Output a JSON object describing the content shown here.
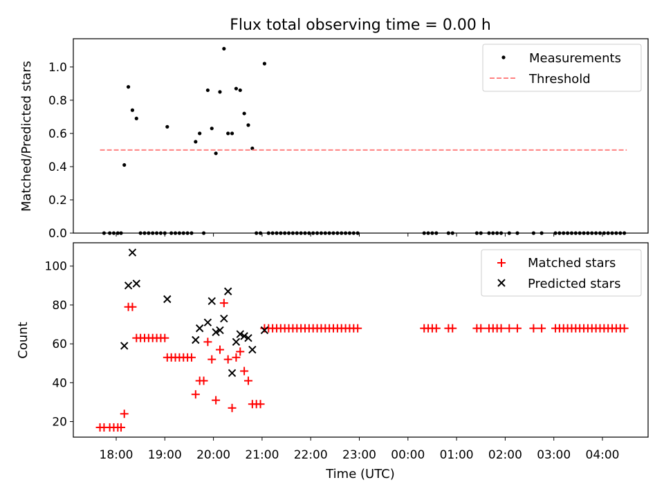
{
  "title": "Flux total observing time = 0.00 h",
  "xlabel": "Time (UTC)",
  "x_tick_labels": [
    "18:00",
    "19:00",
    "20:00",
    "21:00",
    "22:00",
    "23:00",
    "00:00",
    "01:00",
    "02:00",
    "03:00",
    "04:00"
  ],
  "colors": {
    "measurements": "#000000",
    "threshold": "#ff8080",
    "matched": "#ff0000",
    "predicted": "#000000"
  },
  "chart_data": [
    {
      "type": "scatter",
      "title": "Flux total observing time = 0.00 h",
      "xlabel": "",
      "ylabel": "Matched/Predicted stars",
      "ylim": [
        0,
        1.17
      ],
      "yticks": [
        0.0,
        0.2,
        0.4,
        0.6,
        0.8,
        1.0
      ],
      "ytick_labels": [
        "0.0",
        "0.2",
        "0.4",
        "0.6",
        "0.8",
        "1.0"
      ],
      "legend": "top-right",
      "series": [
        {
          "name": "Measurements",
          "marker": "dot",
          "points": [
            [
              "17:45",
              0
            ],
            [
              "17:52",
              0
            ],
            [
              "17:57",
              0
            ],
            [
              "18:02",
              0
            ],
            [
              "18:06",
              0
            ],
            [
              "18:10",
              0.41
            ],
            [
              "18:15",
              0.88
            ],
            [
              "18:20",
              0.74
            ],
            [
              "18:25",
              0.69
            ],
            [
              "18:30",
              0
            ],
            [
              "18:35",
              0
            ],
            [
              "18:40",
              0
            ],
            [
              "18:45",
              0
            ],
            [
              "18:50",
              0
            ],
            [
              "18:55",
              0
            ],
            [
              "19:00",
              0
            ],
            [
              "19:03",
              0.64
            ],
            [
              "19:08",
              0
            ],
            [
              "19:13",
              0
            ],
            [
              "19:18",
              0
            ],
            [
              "19:23",
              0
            ],
            [
              "19:28",
              0
            ],
            [
              "19:33",
              0
            ],
            [
              "19:38",
              0.55
            ],
            [
              "19:43",
              0.6
            ],
            [
              "19:48",
              0
            ],
            [
              "19:53",
              0.86
            ],
            [
              "19:58",
              0.63
            ],
            [
              "20:03",
              0.48
            ],
            [
              "20:08",
              0.85
            ],
            [
              "20:13",
              1.11
            ],
            [
              "20:18",
              0.6
            ],
            [
              "20:23",
              0.6
            ],
            [
              "20:28",
              0.87
            ],
            [
              "20:33",
              0.86
            ],
            [
              "20:38",
              0.72
            ],
            [
              "20:43",
              0.65
            ],
            [
              "20:48",
              0.51
            ],
            [
              "20:53",
              0
            ],
            [
              "20:58",
              0
            ],
            [
              "21:03",
              1.02
            ],
            [
              "21:08",
              0
            ],
            [
              "21:13",
              0
            ],
            [
              "21:18",
              0
            ],
            [
              "21:23",
              0
            ],
            [
              "21:28",
              0
            ],
            [
              "21:33",
              0
            ],
            [
              "21:38",
              0
            ],
            [
              "21:43",
              0
            ],
            [
              "21:48",
              0
            ],
            [
              "21:53",
              0
            ],
            [
              "21:58",
              0
            ],
            [
              "22:03",
              0
            ],
            [
              "22:08",
              0
            ],
            [
              "22:13",
              0
            ],
            [
              "22:18",
              0
            ],
            [
              "22:23",
              0
            ],
            [
              "22:28",
              0
            ],
            [
              "22:33",
              0
            ],
            [
              "22:38",
              0
            ],
            [
              "22:43",
              0
            ],
            [
              "22:48",
              0
            ],
            [
              "22:53",
              0
            ],
            [
              "22:58",
              0
            ],
            [
              "00:20",
              0
            ],
            [
              "00:25",
              0
            ],
            [
              "00:30",
              0
            ],
            [
              "00:35",
              0
            ],
            [
              "00:50",
              0
            ],
            [
              "00:55",
              0
            ],
            [
              "01:25",
              0
            ],
            [
              "01:30",
              0
            ],
            [
              "01:40",
              0
            ],
            [
              "01:45",
              0
            ],
            [
              "01:50",
              0
            ],
            [
              "01:55",
              0
            ],
            [
              "02:05",
              0
            ],
            [
              "02:15",
              0
            ],
            [
              "02:35",
              0
            ],
            [
              "02:45",
              0
            ],
            [
              "03:02",
              0
            ],
            [
              "03:07",
              0
            ],
            [
              "03:12",
              0
            ],
            [
              "03:17",
              0
            ],
            [
              "03:22",
              0
            ],
            [
              "03:27",
              0
            ],
            [
              "03:32",
              0
            ],
            [
              "03:37",
              0
            ],
            [
              "03:42",
              0
            ],
            [
              "03:47",
              0
            ],
            [
              "03:52",
              0
            ],
            [
              "03:57",
              0
            ],
            [
              "04:02",
              0
            ],
            [
              "04:07",
              0
            ],
            [
              "04:12",
              0
            ],
            [
              "04:17",
              0
            ],
            [
              "04:22",
              0
            ],
            [
              "04:27",
              0
            ]
          ]
        },
        {
          "name": "Threshold",
          "marker": "dashed-line",
          "points": [
            [
              "17:40",
              0.5
            ],
            [
              "04:30",
              0.5
            ]
          ]
        }
      ]
    },
    {
      "type": "scatter",
      "title": "",
      "xlabel": "Time (UTC)",
      "ylabel": "Count",
      "ylim": [
        12,
        112
      ],
      "yticks": [
        20,
        40,
        60,
        80,
        100
      ],
      "ytick_labels": [
        "20",
        "40",
        "60",
        "80",
        "100"
      ],
      "legend": "top-right",
      "series": [
        {
          "name": "Matched stars",
          "marker": "plus",
          "points": [
            [
              "17:40",
              17
            ],
            [
              "17:45",
              17
            ],
            [
              "17:52",
              17
            ],
            [
              "17:57",
              17
            ],
            [
              "18:02",
              17
            ],
            [
              "18:06",
              17
            ],
            [
              "18:10",
              24
            ],
            [
              "18:15",
              79
            ],
            [
              "18:20",
              79
            ],
            [
              "18:25",
              63
            ],
            [
              "18:30",
              63
            ],
            [
              "18:35",
              63
            ],
            [
              "18:40",
              63
            ],
            [
              "18:45",
              63
            ],
            [
              "18:50",
              63
            ],
            [
              "18:55",
              63
            ],
            [
              "19:00",
              63
            ],
            [
              "19:03",
              53
            ],
            [
              "19:08",
              53
            ],
            [
              "19:13",
              53
            ],
            [
              "19:18",
              53
            ],
            [
              "19:23",
              53
            ],
            [
              "19:28",
              53
            ],
            [
              "19:33",
              53
            ],
            [
              "19:38",
              34
            ],
            [
              "19:43",
              41
            ],
            [
              "19:48",
              41
            ],
            [
              "19:53",
              61
            ],
            [
              "19:58",
              52
            ],
            [
              "20:03",
              31
            ],
            [
              "20:08",
              57
            ],
            [
              "20:13",
              81
            ],
            [
              "20:18",
              52
            ],
            [
              "20:23",
              27
            ],
            [
              "20:28",
              53
            ],
            [
              "20:33",
              56
            ],
            [
              "20:38",
              46
            ],
            [
              "20:43",
              41
            ],
            [
              "20:48",
              29
            ],
            [
              "20:53",
              29
            ],
            [
              "20:58",
              29
            ],
            [
              "21:03",
              68
            ],
            [
              "21:08",
              68
            ],
            [
              "21:13",
              68
            ],
            [
              "21:18",
              68
            ],
            [
              "21:23",
              68
            ],
            [
              "21:28",
              68
            ],
            [
              "21:33",
              68
            ],
            [
              "21:38",
              68
            ],
            [
              "21:43",
              68
            ],
            [
              "21:48",
              68
            ],
            [
              "21:53",
              68
            ],
            [
              "21:58",
              68
            ],
            [
              "22:03",
              68
            ],
            [
              "22:08",
              68
            ],
            [
              "22:13",
              68
            ],
            [
              "22:18",
              68
            ],
            [
              "22:23",
              68
            ],
            [
              "22:28",
              68
            ],
            [
              "22:33",
              68
            ],
            [
              "22:38",
              68
            ],
            [
              "22:43",
              68
            ],
            [
              "22:48",
              68
            ],
            [
              "22:53",
              68
            ],
            [
              "22:58",
              68
            ],
            [
              "00:20",
              68
            ],
            [
              "00:25",
              68
            ],
            [
              "00:30",
              68
            ],
            [
              "00:35",
              68
            ],
            [
              "00:50",
              68
            ],
            [
              "00:55",
              68
            ],
            [
              "01:25",
              68
            ],
            [
              "01:30",
              68
            ],
            [
              "01:40",
              68
            ],
            [
              "01:45",
              68
            ],
            [
              "01:50",
              68
            ],
            [
              "01:55",
              68
            ],
            [
              "02:05",
              68
            ],
            [
              "02:15",
              68
            ],
            [
              "02:35",
              68
            ],
            [
              "02:45",
              68
            ],
            [
              "03:02",
              68
            ],
            [
              "03:07",
              68
            ],
            [
              "03:12",
              68
            ],
            [
              "03:17",
              68
            ],
            [
              "03:22",
              68
            ],
            [
              "03:27",
              68
            ],
            [
              "03:32",
              68
            ],
            [
              "03:37",
              68
            ],
            [
              "03:42",
              68
            ],
            [
              "03:47",
              68
            ],
            [
              "03:52",
              68
            ],
            [
              "03:57",
              68
            ],
            [
              "04:02",
              68
            ],
            [
              "04:07",
              68
            ],
            [
              "04:12",
              68
            ],
            [
              "04:17",
              68
            ],
            [
              "04:22",
              68
            ],
            [
              "04:27",
              68
            ]
          ]
        },
        {
          "name": "Predicted stars",
          "marker": "x",
          "points": [
            [
              "18:10",
              59
            ],
            [
              "18:15",
              90
            ],
            [
              "18:20",
              107
            ],
            [
              "18:25",
              91
            ],
            [
              "19:03",
              83
            ],
            [
              "19:38",
              62
            ],
            [
              "19:43",
              68
            ],
            [
              "19:53",
              71
            ],
            [
              "19:58",
              82
            ],
            [
              "20:03",
              66
            ],
            [
              "20:08",
              67
            ],
            [
              "20:13",
              73
            ],
            [
              "20:18",
              87
            ],
            [
              "20:23",
              45
            ],
            [
              "20:28",
              61
            ],
            [
              "20:33",
              65
            ],
            [
              "20:38",
              64
            ],
            [
              "20:43",
              63
            ],
            [
              "20:48",
              57
            ],
            [
              "21:03",
              67
            ]
          ]
        }
      ]
    }
  ]
}
